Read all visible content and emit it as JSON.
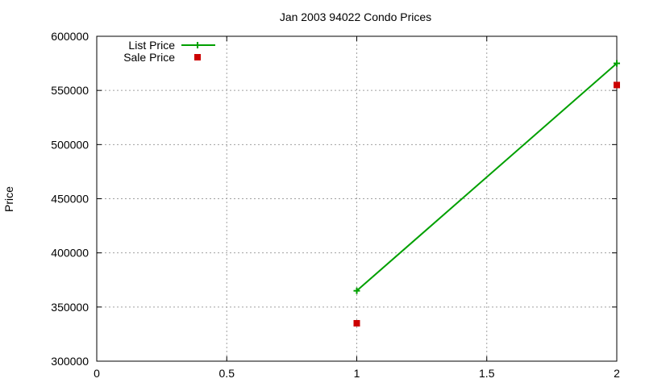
{
  "chart_data": {
    "type": "line",
    "title": "Jan 2003 94022 Condo Prices",
    "xlabel": "",
    "ylabel": "Price",
    "xlim": [
      0,
      2
    ],
    "ylim": [
      300000,
      600000
    ],
    "x_ticks": [
      0,
      0.5,
      1,
      1.5,
      2
    ],
    "x_tick_labels": [
      "0",
      "0.5",
      "1",
      "1.5",
      "2"
    ],
    "y_ticks": [
      300000,
      350000,
      400000,
      450000,
      500000,
      550000,
      600000
    ],
    "y_tick_labels": [
      "300000",
      "350000",
      "400000",
      "450000",
      "500000",
      "550000",
      "600000"
    ],
    "grid": true,
    "legend_position": "top-left",
    "series": [
      {
        "name": "List Price",
        "style": "line-with-plus-markers",
        "color": "#00a000",
        "x": [
          1,
          2
        ],
        "y": [
          365000,
          575000
        ]
      },
      {
        "name": "Sale Price",
        "style": "square-markers",
        "color": "#cc0000",
        "x": [
          1,
          2
        ],
        "y": [
          335000,
          555000
        ]
      }
    ]
  }
}
